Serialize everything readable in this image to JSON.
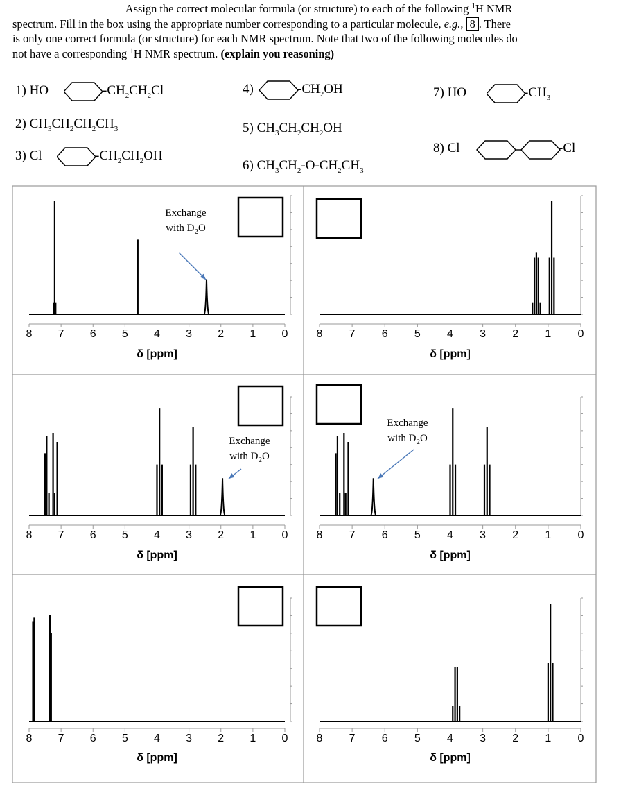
{
  "instructions": {
    "line1": "Assign the correct molecular formula (or structure) to each of the following ",
    "line1_sup": "1",
    "line1_end": "H NMR",
    "line2": "spectrum. Fill in the box using the appropriate number corresponding to a particular molecule, ",
    "line2_eg": "e.g.",
    "line2_mid": ", ",
    "line2_box": "8",
    "line2_end": ". There",
    "line3": "is only one correct formula (or structure) for each NMR spectrum. Note that two of the following molecules do",
    "line4": "not have a corresponding ",
    "line4_sup": "1",
    "line4_mid": "H NMR spectrum. ",
    "line4_bold": "(explain you reasoning)"
  },
  "molecules": {
    "m1": {
      "num": "1) HO",
      "right": "CH",
      "s1": "2",
      "mid": "CH",
      "s2": "2",
      "end": "Cl"
    },
    "m2": {
      "t1": "2) CH",
      "s1": "3",
      "t2": "CH",
      "s2": "2",
      "t3": "CH",
      "s3": "2",
      "t4": "CH",
      "s4": "3"
    },
    "m3": {
      "num": "3) Cl",
      "right": "CH",
      "s1": "2",
      "mid": "CH",
      "s2": "2",
      "end": "OH"
    },
    "m4": {
      "num": "4)",
      "right": "CH",
      "s1": "2",
      "end": "OH"
    },
    "m5": {
      "t1": "5) CH",
      "s1": "3",
      "t2": "CH",
      "s2": "2",
      "t3": "CH",
      "s3": "2",
      "t4": "OH"
    },
    "m6": {
      "t1": "6) CH",
      "s1": "3",
      "t2": "CH",
      "s2": "2",
      "t3": "-O-CH",
      "s3": "2",
      "t4": "CH",
      "s4": "3"
    },
    "m7": {
      "num": "7) HO",
      "right": "CH",
      "s1": "3"
    },
    "m8": {
      "num": "8) Cl",
      "end": "Cl"
    }
  },
  "annotation": {
    "exchange": "Exchange",
    "with": "with D",
    "sub": "2",
    "o": "O"
  },
  "chart_data": [
    {
      "type": "line",
      "xlabel": "δ [ppm]",
      "xlim": [
        8,
        0
      ],
      "x_ticks": [
        8,
        7,
        6,
        5,
        4,
        3,
        2,
        1,
        0
      ],
      "annotation_target": 2.45,
      "peaks": [
        {
          "x": 7.2,
          "h": 1.0
        },
        {
          "x": 7.17,
          "h": 0.1
        },
        {
          "x": 7.23,
          "h": 0.1
        },
        {
          "x": 4.6,
          "h": 0.66
        },
        {
          "x": 2.45,
          "h": 0.31,
          "w": 0.04
        }
      ]
    },
    {
      "type": "line",
      "xlabel": "δ [ppm]",
      "xlim": [
        8,
        0
      ],
      "x_ticks": [
        8,
        7,
        6,
        5,
        4,
        3,
        2,
        1,
        0
      ],
      "peaks": [
        {
          "x": 1.48,
          "h": 0.1
        },
        {
          "x": 1.42,
          "h": 0.5
        },
        {
          "x": 1.36,
          "h": 0.55
        },
        {
          "x": 1.3,
          "h": 0.5
        },
        {
          "x": 1.24,
          "h": 0.1
        },
        {
          "x": 0.96,
          "h": 0.5
        },
        {
          "x": 0.89,
          "h": 1.0
        },
        {
          "x": 0.82,
          "h": 0.5
        }
      ]
    },
    {
      "type": "line",
      "xlabel": "δ [ppm]",
      "xlim": [
        8,
        0
      ],
      "x_ticks": [
        8,
        7,
        6,
        5,
        4,
        3,
        2,
        1,
        0
      ],
      "annotation_target": 1.95,
      "peaks": [
        {
          "x": 7.5,
          "h": 0.55
        },
        {
          "x": 7.45,
          "h": 0.7
        },
        {
          "x": 7.38,
          "h": 0.2
        },
        {
          "x": 7.25,
          "h": 0.73
        },
        {
          "x": 7.2,
          "h": 0.2
        },
        {
          "x": 7.12,
          "h": 0.65
        },
        {
          "x": 4.0,
          "h": 0.45
        },
        {
          "x": 3.92,
          "h": 0.95
        },
        {
          "x": 3.84,
          "h": 0.45
        },
        {
          "x": 2.95,
          "h": 0.45
        },
        {
          "x": 2.87,
          "h": 0.78
        },
        {
          "x": 2.79,
          "h": 0.45
        },
        {
          "x": 1.95,
          "h": 0.33,
          "w": 0.04
        }
      ]
    },
    {
      "type": "line",
      "xlabel": "δ [ppm]",
      "xlim": [
        8,
        0
      ],
      "x_ticks": [
        8,
        7,
        6,
        5,
        4,
        3,
        2,
        1,
        0
      ],
      "annotation_target": 6.35,
      "peaks": [
        {
          "x": 7.5,
          "h": 0.55
        },
        {
          "x": 7.45,
          "h": 0.7
        },
        {
          "x": 7.38,
          "h": 0.2
        },
        {
          "x": 7.25,
          "h": 0.73
        },
        {
          "x": 7.2,
          "h": 0.2
        },
        {
          "x": 7.12,
          "h": 0.65
        },
        {
          "x": 6.35,
          "h": 0.33,
          "w": 0.04
        },
        {
          "x": 4.0,
          "h": 0.45
        },
        {
          "x": 3.92,
          "h": 0.95
        },
        {
          "x": 3.84,
          "h": 0.45
        },
        {
          "x": 2.95,
          "h": 0.45
        },
        {
          "x": 2.87,
          "h": 0.78
        },
        {
          "x": 2.79,
          "h": 0.45
        }
      ]
    },
    {
      "type": "line",
      "xlabel": "δ [ppm]",
      "xlim": [
        8,
        0
      ],
      "x_ticks": [
        8,
        7,
        6,
        5,
        4,
        3,
        2,
        1,
        0
      ],
      "peaks": [
        {
          "x": 7.88,
          "h": 0.85
        },
        {
          "x": 7.84,
          "h": 0.88
        },
        {
          "x": 7.35,
          "h": 0.9
        },
        {
          "x": 7.31,
          "h": 0.75
        }
      ]
    },
    {
      "type": "line",
      "xlabel": "δ [ppm]",
      "xlim": [
        8,
        0
      ],
      "x_ticks": [
        8,
        7,
        6,
        5,
        4,
        3,
        2,
        1,
        0
      ],
      "peaks": [
        {
          "x": 3.92,
          "h": 0.13
        },
        {
          "x": 3.85,
          "h": 0.46
        },
        {
          "x": 3.78,
          "h": 0.46
        },
        {
          "x": 3.71,
          "h": 0.13
        },
        {
          "x": 1.0,
          "h": 0.5
        },
        {
          "x": 0.93,
          "h": 1.0
        },
        {
          "x": 0.86,
          "h": 0.5
        }
      ]
    }
  ]
}
